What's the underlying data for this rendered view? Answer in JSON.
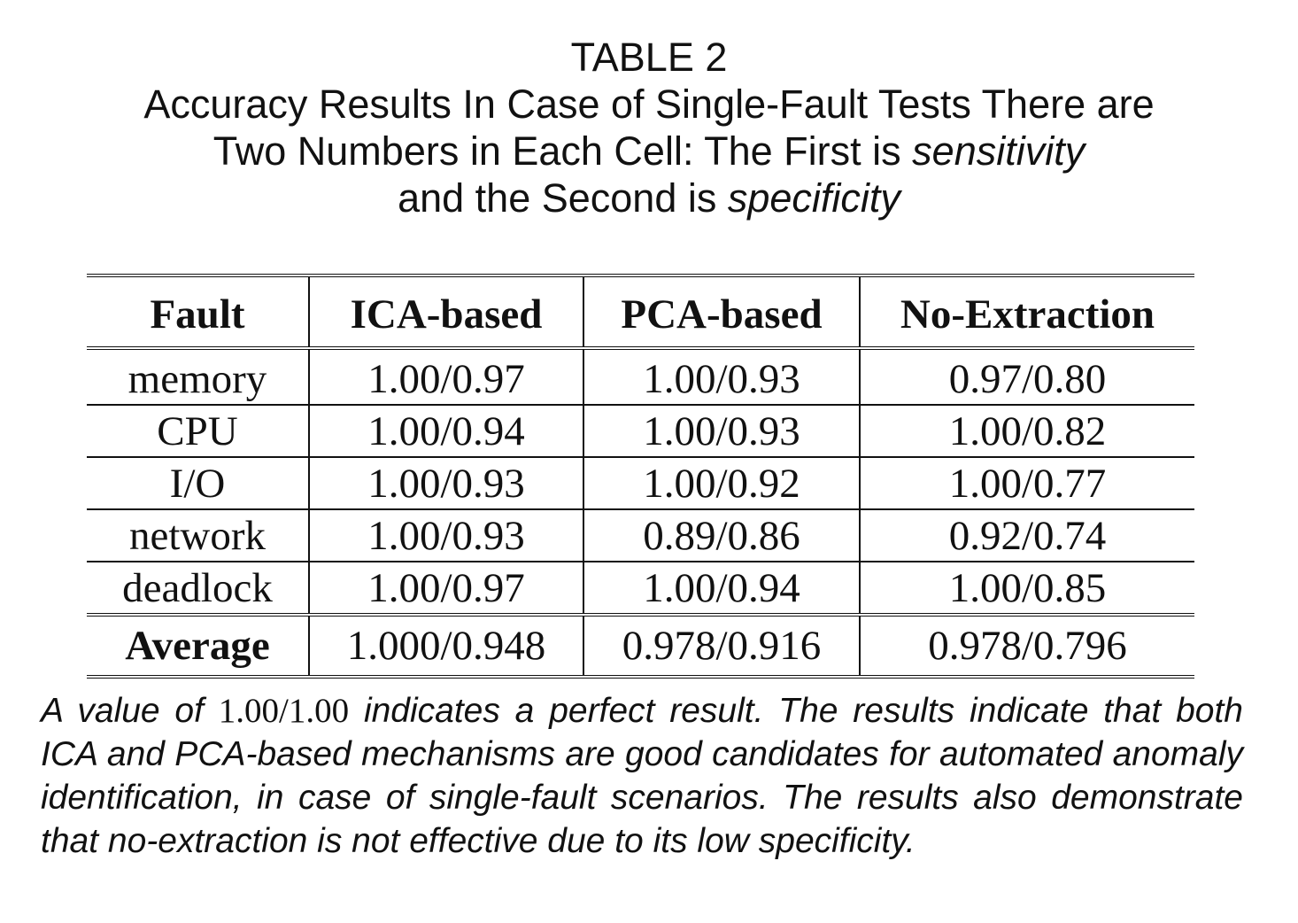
{
  "caption": {
    "label": "TABLE 2",
    "line1": "Accuracy Results In Case of Single-Fault Tests There are",
    "line2_prefix": "Two Numbers in Each Cell: The First is ",
    "line2_emph": "sensitivity",
    "line3_prefix": "and the Second is ",
    "line3_emph": "specificity"
  },
  "table": {
    "headers": [
      "Fault",
      "ICA-based",
      "PCA-based",
      "No-Extraction"
    ],
    "rows": [
      [
        "memory",
        "1.00/0.97",
        "1.00/0.93",
        "0.97/0.80"
      ],
      [
        "CPU",
        "1.00/0.94",
        "1.00/0.93",
        "1.00/0.82"
      ],
      [
        "I/O",
        "1.00/0.93",
        "1.00/0.92",
        "1.00/0.77"
      ],
      [
        "network",
        "1.00/0.93",
        "0.89/0.86",
        "0.92/0.74"
      ],
      [
        "deadlock",
        "1.00/0.97",
        "1.00/0.94",
        "1.00/0.85"
      ]
    ],
    "footer": [
      "Average",
      "1.000/0.948",
      "0.978/0.916",
      "0.978/0.796"
    ]
  },
  "note": {
    "prefix": "A value of ",
    "math_value": "1.00/1.00",
    "suffix": " indicates a perfect result. The results indicate that both ICA and PCA-based mechanisms are good candidates for automated anomaly identification, in case of single-fault scenarios. The results also demonstrate that no-extraction is not effective due to its low specificity."
  }
}
